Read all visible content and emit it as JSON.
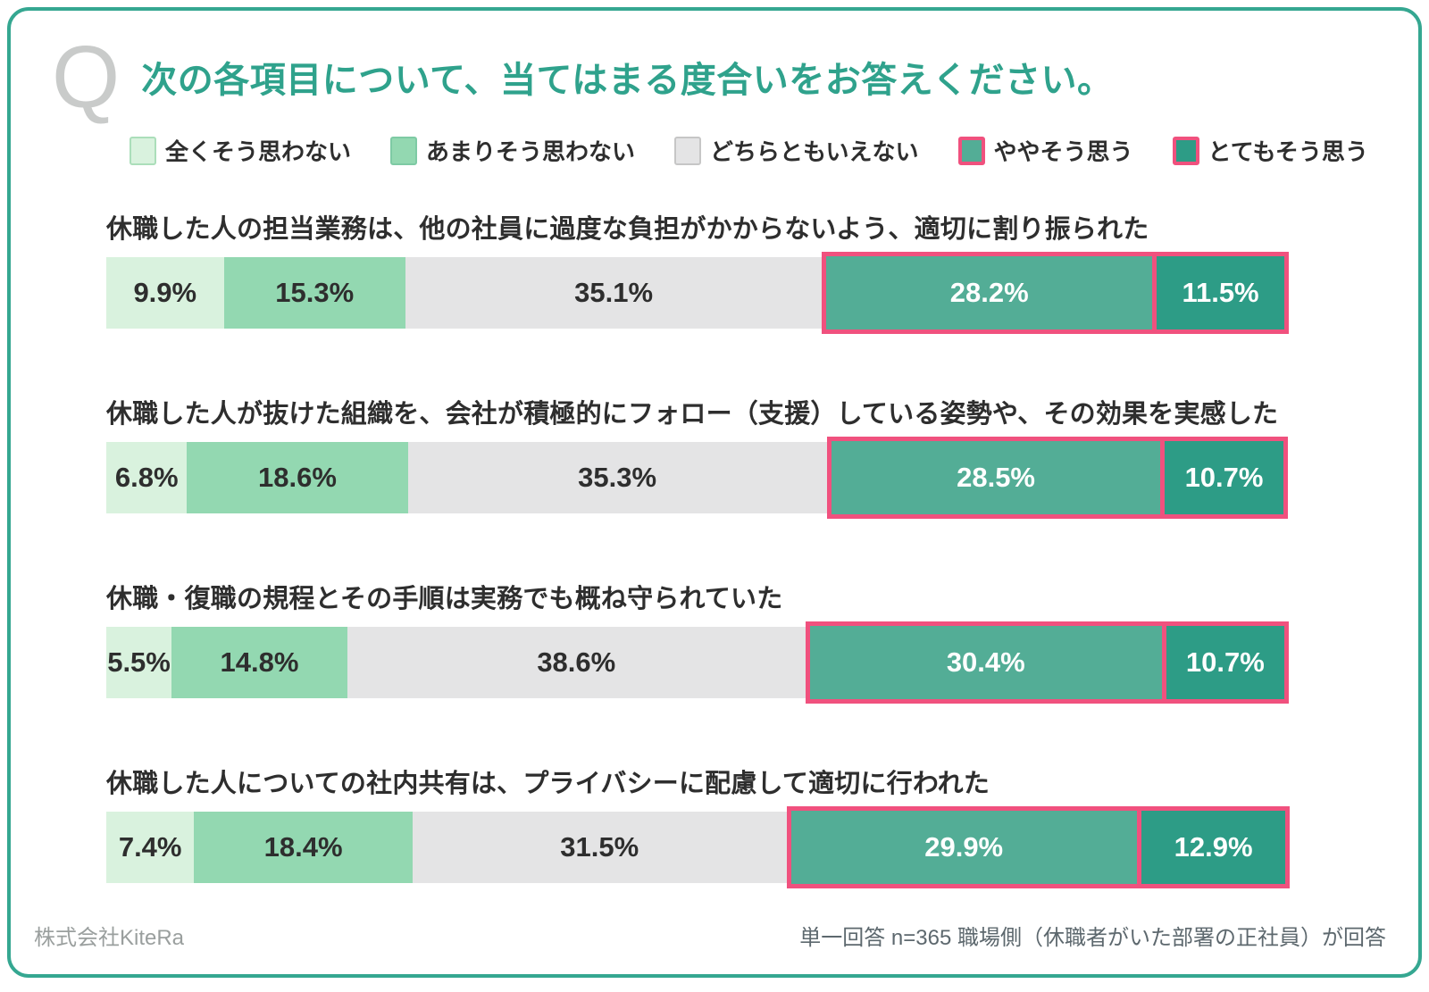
{
  "header": {
    "q_glyph": "Q",
    "title": "次の各項目について、当てはまる度合いをお答えください。"
  },
  "colors": {
    "accent": "#2fa28c",
    "card_border": "#35a791",
    "highlight_border": "#f0517e",
    "label_dark": "#2e2e2e",
    "label_light": "#ffffff"
  },
  "legend": {
    "items": [
      {
        "label": "全くそう思わない",
        "color": "#d9f2de",
        "border": "#abdeba",
        "highlighted": false
      },
      {
        "label": "あまりそう思わない",
        "color": "#93d8b1",
        "border": "#7ecaa4",
        "highlighted": false
      },
      {
        "label": "どちらともいえない",
        "color": "#e4e4e5",
        "border": "#c6c6c6",
        "highlighted": false
      },
      {
        "label": "ややそう思う",
        "color": "#53ad96",
        "border": "#f0517e",
        "highlighted": true
      },
      {
        "label": "とてもそう思う",
        "color": "#2d9c86",
        "border": "#f0517e",
        "highlighted": true
      }
    ]
  },
  "chart_data": {
    "type": "bar",
    "stacked": true,
    "orientation": "horizontal",
    "unit": "percent",
    "xlim": [
      0,
      100
    ],
    "grid": false,
    "legend_position": "top",
    "title": "次の各項目について、当てはまる度合いをお答えください。",
    "categories": [
      "全くそう思わない",
      "あまりそう思わない",
      "どちらともいえない",
      "ややそう思う",
      "とてもそう思う"
    ],
    "series": [
      {
        "name": "休職した人の担当業務は、他の社員に過度な負担がかからないよう、適切に割り振られた",
        "values": [
          9.9,
          15.3,
          35.1,
          28.2,
          11.5
        ],
        "labels": [
          "9.9%",
          "15.3%",
          "35.1%",
          "28.2%",
          "11.5%"
        ]
      },
      {
        "name": "休職した人が抜けた組織を、会社が積極的にフォロー（支援）している姿勢や、その効果を実感した",
        "values": [
          6.8,
          18.6,
          35.3,
          28.5,
          10.7
        ],
        "labels": [
          "6.8%",
          "18.6%",
          "35.3%",
          "28.5%",
          "10.7%"
        ]
      },
      {
        "name": "休職・復職の規程とその手順は実務でも概ね守られていた",
        "values": [
          5.5,
          14.8,
          38.6,
          30.4,
          10.7
        ],
        "labels": [
          "5.5%",
          "14.8%",
          "38.6%",
          "30.4%",
          "10.7%"
        ]
      },
      {
        "name": "休職した人についての社内共有は、プライバシーに配慮して適切に行われた",
        "values": [
          7.4,
          18.4,
          31.5,
          29.9,
          12.9
        ],
        "labels": [
          "7.4%",
          "18.4%",
          "31.5%",
          "29.9%",
          "12.9%"
        ]
      }
    ]
  },
  "footer": {
    "left": "株式会社KiteRa",
    "right": "単一回答 n=365 職場側（休職者がいた部署の正社員）が回答"
  }
}
